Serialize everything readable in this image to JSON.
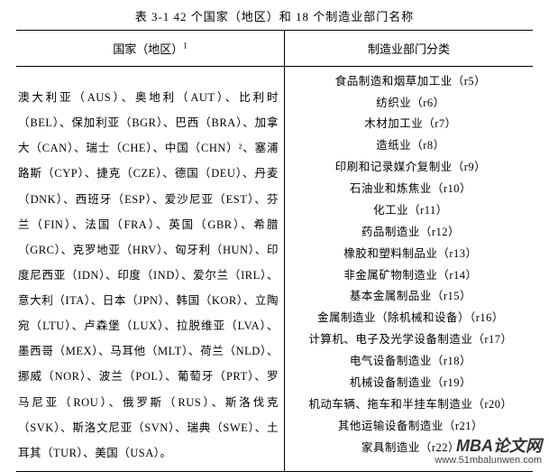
{
  "caption": "表 3-1 42 个国家（地区）和 18 个制造业部门名称",
  "headers": {
    "left": "国家（地区）",
    "left_sup": "1",
    "right": "制造业部门分类"
  },
  "countries_text": "澳大利亚（AUS）、奥地利（AUT）、比利时（BEL）、保加利亚（BGR）、巴西（BRA）、加拿大（CAN）、瑞士（CHE）、中国（CHN）²、塞浦路斯（CYP）、捷克（CZE）、德国（DEU）、丹麦（DNK）、西班牙（ESP）、爱沙尼亚（EST）、芬兰（FIN）、法国（FRA）、英国（GBR）、希腊（GRC）、克罗地亚（HRV）、匈牙利（HUN）、印度尼西亚（IDN）、印度（IND）、爱尔兰（IRL）、意大利（ITA）、日本（JPN）、韩国（KOR）、立陶宛（LTU）、卢森堡（LUX）、拉脱维亚（LVA）、墨西哥（MEX）、马耳他（MLT）、荷兰（NLD）、挪威（NOR）、波兰（POL）、葡萄牙（PRT）、罗马尼亚（ROU）、俄罗斯（RUS）、斯洛伐克（SVK）、斯洛文尼亚（SVN）、瑞典（SWE）、土耳其（TUR）、美国（USA）。",
  "industries": [
    "食品制造和烟草加工业（r5）",
    "纺织业（r6）",
    "木材加工业（r7）",
    "造纸业（r8）",
    "印刷和记录媒介复制业（r9）",
    "石油业和炼焦业（r10）",
    "化工业（r11）",
    "药品制造业（r12）",
    "橡胶和塑料制品业（r13）",
    "非金属矿物制造业（r14）",
    "基本金属制品业（r15）",
    "金属制造业（除机械和设备）（r16）",
    "计算机、电子及光学设备制造业（r17）",
    "电气设备制造业（r18）",
    "机械设备制造业（r19）",
    "机动车辆、拖车和半挂车制造业（r20）",
    "其他运输设备制造业（r21）",
    "家具制造业（r22）"
  ],
  "watermark": {
    "line1": "MBA论文网",
    "line2": "www.51mbalunwen.com"
  }
}
